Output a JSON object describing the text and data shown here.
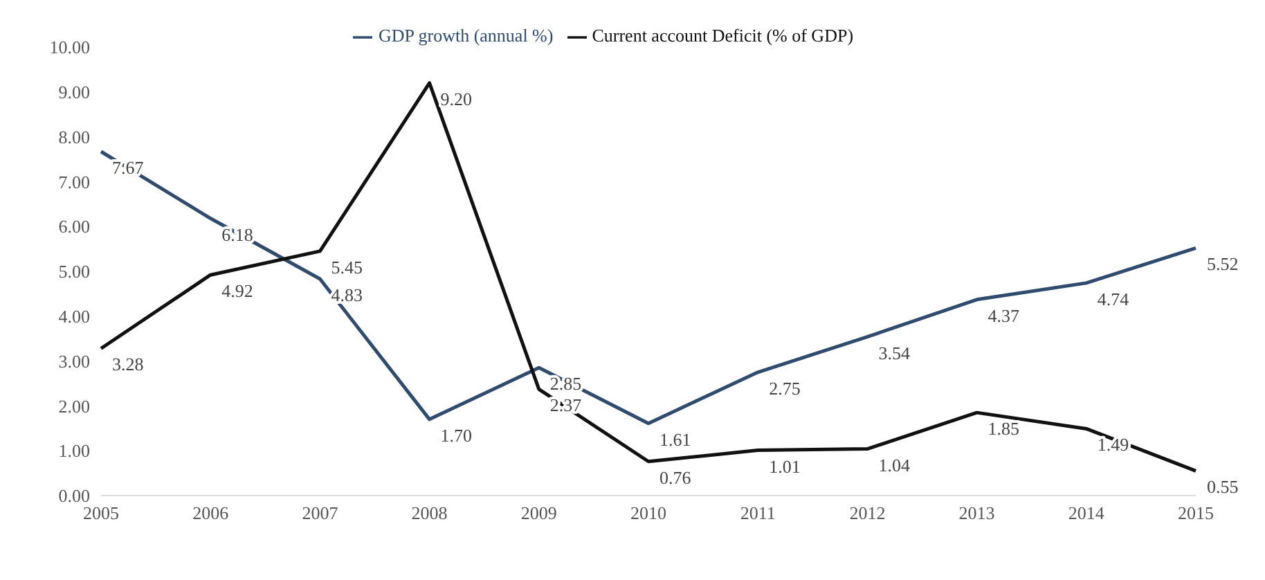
{
  "chart_data": {
    "type": "line",
    "categories": [
      "2005",
      "2006",
      "2007",
      "2008",
      "2009",
      "2010",
      "2011",
      "2012",
      "2013",
      "2014",
      "2015"
    ],
    "series": [
      {
        "name": "GDP growth (annual %)",
        "color": "#2f4b6e",
        "values": [
          7.67,
          6.18,
          4.83,
          1.7,
          2.85,
          1.61,
          2.75,
          3.54,
          4.37,
          4.74,
          5.52
        ],
        "value_labels": [
          "7.67",
          "6.18",
          "4.83",
          "1.70",
          "2.85",
          "1.61",
          "2.75",
          "3.54",
          "4.37",
          "4.74",
          "5.52"
        ]
      },
      {
        "name": "Current account Deficit (% of GDP)",
        "color": "#111111",
        "values": [
          3.28,
          4.92,
          5.45,
          9.2,
          2.37,
          0.76,
          1.01,
          1.04,
          1.85,
          1.49,
          0.55
        ],
        "value_labels": [
          "3.28",
          "4.92",
          "5.45",
          "9.20",
          "2.37",
          "0.76",
          "1.01",
          "1.04",
          "1.85",
          "1.49",
          "0.55"
        ]
      }
    ],
    "ylim": [
      0,
      10
    ],
    "yticks": [
      {
        "value": 0,
        "label": "0.00"
      },
      {
        "value": 1,
        "label": "1.00"
      },
      {
        "value": 2,
        "label": "2.00"
      },
      {
        "value": 3,
        "label": "3.00"
      },
      {
        "value": 4,
        "label": "4.00"
      },
      {
        "value": 5,
        "label": "5.00"
      },
      {
        "value": 6,
        "label": "6.00"
      },
      {
        "value": 7,
        "label": "7.00"
      },
      {
        "value": 8,
        "label": "8.00"
      },
      {
        "value": 9,
        "label": "9.00"
      },
      {
        "value": 10,
        "label": "10.00"
      }
    ],
    "grid": false,
    "legend": "top",
    "marker": "none",
    "line_style": "solid"
  }
}
